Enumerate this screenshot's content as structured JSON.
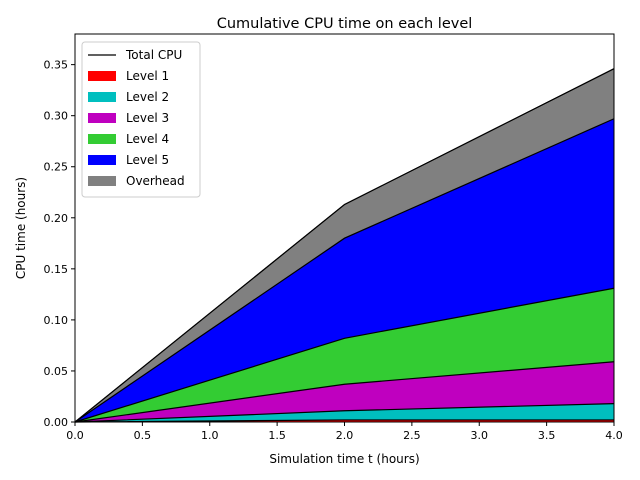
{
  "chart_data": {
    "type": "area",
    "title": "Cumulative CPU time on each level",
    "xlabel": "Simulation time t (hours)",
    "ylabel": "CPU time (hours)",
    "xlim": [
      0,
      4
    ],
    "ylim": [
      0,
      0.38
    ],
    "x_ticks": [
      "0.0",
      "0.5",
      "1.0",
      "1.5",
      "2.0",
      "2.5",
      "3.0",
      "3.5",
      "4.0"
    ],
    "y_ticks": [
      "0.00",
      "0.05",
      "0.10",
      "0.15",
      "0.20",
      "0.25",
      "0.30",
      "0.35"
    ],
    "x": [
      0,
      2,
      4
    ],
    "stacked": true,
    "series": [
      {
        "name": "Level 1",
        "color": "#ff0000",
        "values": [
          0,
          0.002,
          0.002
        ]
      },
      {
        "name": "Level 2",
        "color": "#00bfbf",
        "values": [
          0,
          0.009,
          0.016
        ]
      },
      {
        "name": "Level 3",
        "color": "#bf00bf",
        "values": [
          0,
          0.026,
          0.041
        ]
      },
      {
        "name": "Level 4",
        "color": "#33cc33",
        "values": [
          0,
          0.045,
          0.072
        ]
      },
      {
        "name": "Level 5",
        "color": "#0000ff",
        "values": [
          0,
          0.098,
          0.166
        ]
      },
      {
        "name": "Overhead",
        "color": "#808080",
        "values": [
          0,
          0.033,
          0.049
        ]
      }
    ],
    "total_line": {
      "name": "Total CPU",
      "color": "#000000",
      "values": [
        0,
        0.213,
        0.346
      ]
    },
    "legend": {
      "placement": "top-left",
      "entries": [
        "Total CPU",
        "Level 1",
        "Level 2",
        "Level 3",
        "Level 4",
        "Level 5",
        "Overhead"
      ]
    },
    "grid": false
  }
}
